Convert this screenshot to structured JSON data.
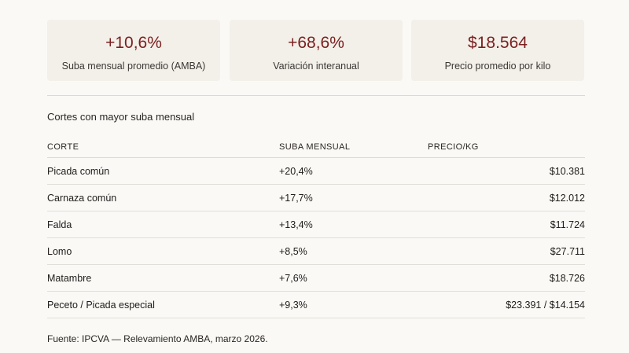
{
  "kpis": [
    {
      "value": "+10,6%",
      "label": "Suba mensual promedio (AMBA)"
    },
    {
      "value": "+68,6%",
      "label": "Variación interanual"
    },
    {
      "value": "$18.564",
      "label": "Precio promedio por kilo"
    }
  ],
  "section_title": "Cortes con mayor suba mensual",
  "table": {
    "headers": [
      "CORTE",
      "SUBA MENSUAL",
      "PRECIO/KG"
    ],
    "rows": [
      {
        "corte": "Picada común",
        "suba": "+20,4%",
        "precio": "$10.381"
      },
      {
        "corte": "Carnaza común",
        "suba": "+17,7%",
        "precio": "$12.012"
      },
      {
        "corte": "Falda",
        "suba": "+13,4%",
        "precio": "$11.724"
      },
      {
        "corte": "Lomo",
        "suba": "+8,5%",
        "precio": "$27.711"
      },
      {
        "corte": "Matambre",
        "suba": "+7,6%",
        "precio": "$18.726"
      },
      {
        "corte": "Peceto / Picada especial",
        "suba": "+9,3%",
        "precio": "$23.391 / $14.154"
      }
    ]
  },
  "source": "Fuente: IPCVA — Relevamiento AMBA, marzo 2026.",
  "colors": {
    "accent": "#7a1f1f",
    "card_bg": "#f2f0e9",
    "page_bg": "#faf9f6"
  }
}
